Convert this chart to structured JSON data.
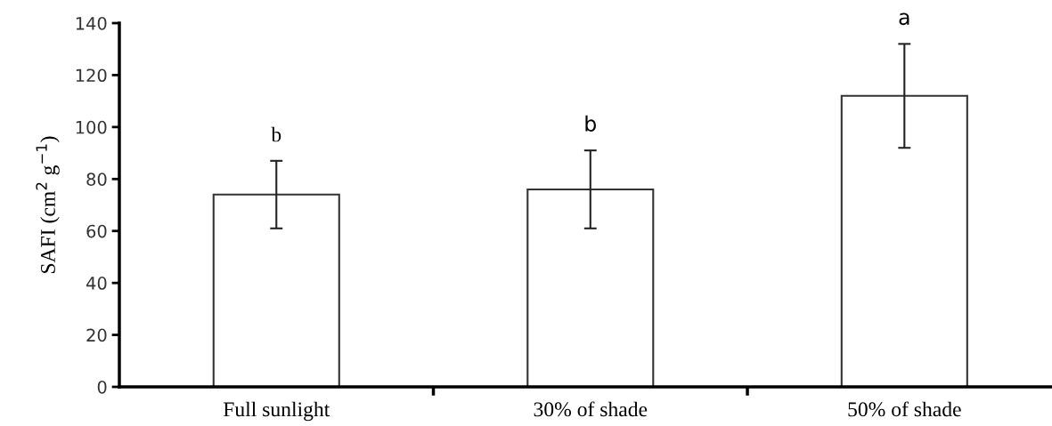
{
  "chart_data": {
    "type": "bar",
    "ylabel": "SAFI (cm$^{2}$ g$^{−1}$)",
    "categories": [
      "Full sunlight",
      "30% of shade",
      "50% of shade"
    ],
    "values": [
      74,
      76,
      112
    ],
    "errors": [
      13,
      15,
      20
    ],
    "color": "#ffffff",
    "ylim": [
      0,
      140
    ],
    "yticks": [
      0,
      20,
      40,
      60,
      80,
      100,
      120,
      140
    ],
    "annotations": [
      "b",
      "b",
      "a"
    ]
  }
}
